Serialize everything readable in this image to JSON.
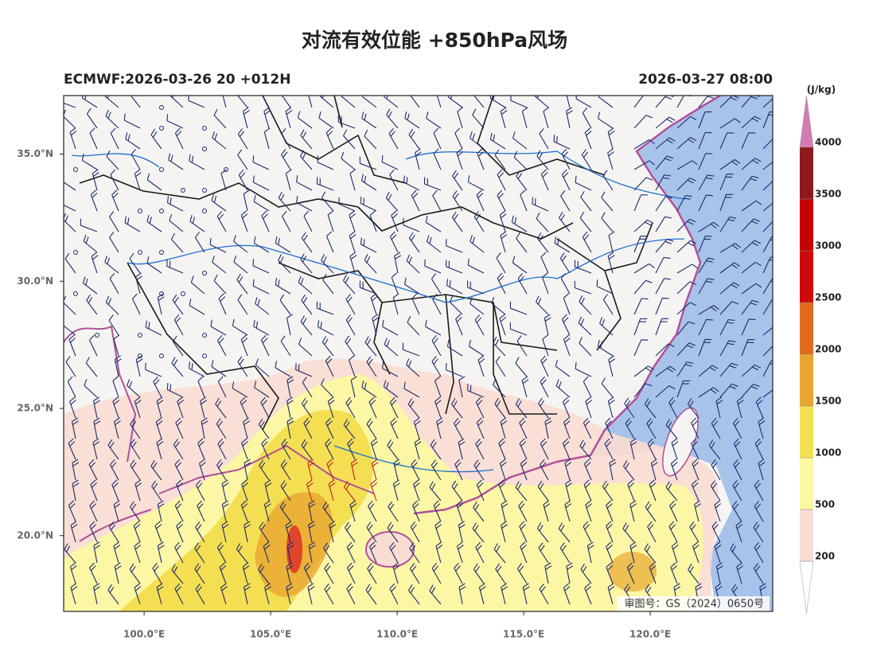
{
  "header": {
    "title": "对流有效位能 +850hPa风场",
    "left": "ECMWF:2026-03-26 20 +012H",
    "right": "2026-03-27 08:00"
  },
  "map": {
    "lonlim": [
      96.82,
      124.84
    ],
    "latlim": [
      17.02,
      37.3
    ],
    "lon_ticks": [
      {
        "value": 100,
        "label": "100.0°E"
      },
      {
        "value": 105,
        "label": "105.0°E"
      },
      {
        "value": 110,
        "label": "110.0°E"
      },
      {
        "value": 115,
        "label": "115.0°E"
      },
      {
        "value": 120,
        "label": "120.0°E"
      }
    ],
    "lat_ticks": [
      {
        "value": 20,
        "label": "20.0°N"
      },
      {
        "value": 25,
        "label": "25.0°N"
      },
      {
        "value": 30,
        "label": "30.0°N"
      },
      {
        "value": 35,
        "label": "35.0°N"
      }
    ],
    "approval": "审图号：GS（2024）0650号"
  },
  "colorbar": {
    "unit": "(J/kg)",
    "levels": [
      200,
      500,
      1000,
      1500,
      2000,
      2500,
      3000,
      3500,
      4000
    ],
    "colors": [
      "#f9ddd2",
      "#fbf8a2",
      "#f4df52",
      "#e8a631",
      "#e06b20",
      "#cd0a0a",
      "#c50000",
      "#8e1b1b"
    ],
    "over_color": "#d47bb3",
    "under_color": "#ffffff"
  }
}
